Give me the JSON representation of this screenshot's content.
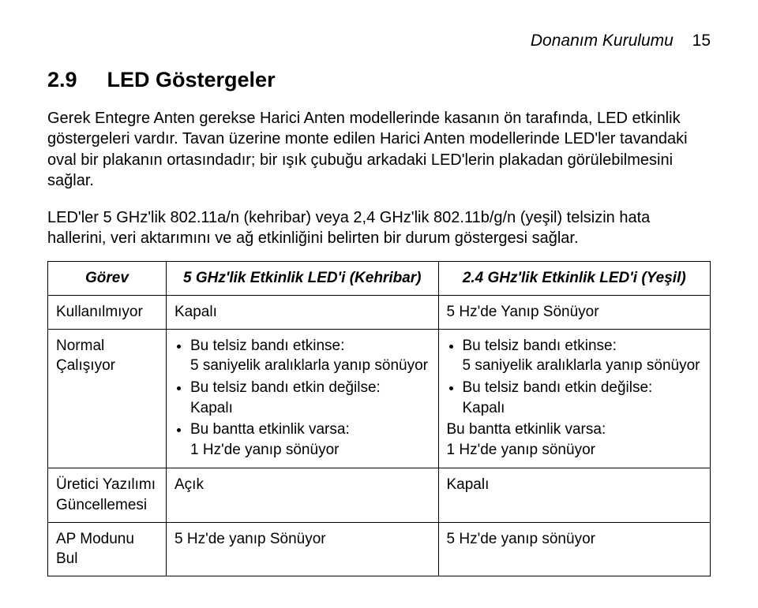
{
  "header": {
    "chapter": "Donanım Kurulumu",
    "page": "15"
  },
  "section": {
    "number": "2.9",
    "title": "LED Göstergeler"
  },
  "para1": "Gerek Entegre Anten gerekse Harici Anten modellerinde kasanın ön tarafında, LED etkinlik göstergeleri vardır. Tavan üzerine monte edilen Harici Anten modellerinde LED'ler tavandaki oval bir plakanın ortasındadır; bir ışık çubuğu arkadaki LED'lerin plakadan görülebilmesini sağlar.",
  "para2": "LED'ler 5 GHz'lik 802.11a/n (kehribar) veya 2,4 GHz'lik 802.11b/g/n (yeşil) telsizin hata hallerini, veri aktarımını ve ağ etkinliğini belirten bir durum göstergesi sağlar.",
  "table": {
    "head": {
      "c1": "Görev",
      "c2": "5 GHz'lik Etkinlik LED'i (Kehribar)",
      "c3": "2.4 GHz'lik Etkinlik LED'i (Yeşil)"
    },
    "r1": {
      "c1": "Kullanılmıyor",
      "c2": "Kapalı",
      "c3": "5 Hz'de Yanıp Sönüyor"
    },
    "r2": {
      "c1": "Normal Çalışıyor",
      "c2": {
        "b1": "Bu telsiz bandı etkinse:",
        "b1s": "5 saniyelik aralıklarla yanıp sönüyor",
        "b2": "Bu telsiz bandı etkin değilse:",
        "b2s": "Kapalı",
        "b3": "Bu bantta etkinlik varsa:",
        "b3s": "1 Hz'de yanıp sönüyor"
      },
      "c3": {
        "b1": "Bu telsiz bandı etkinse:",
        "b1s": "5 saniyelik aralıklarla yanıp sönüyor",
        "b2": "Bu telsiz bandı etkin değilse:",
        "b2s": "Kapalı",
        "b3": "Bu bantta etkinlik varsa:",
        "b3s": "1 Hz'de yanıp sönüyor"
      }
    },
    "r3": {
      "c1": "Üretici Yazılımı Güncellemesi",
      "c2": "Açık",
      "c3": "Kapalı"
    },
    "r4": {
      "c1": "AP Modunu Bul",
      "c2": "5 Hz'de yanıp Sönüyor",
      "c3": "5 Hz'de yanıp sönüyor"
    }
  }
}
